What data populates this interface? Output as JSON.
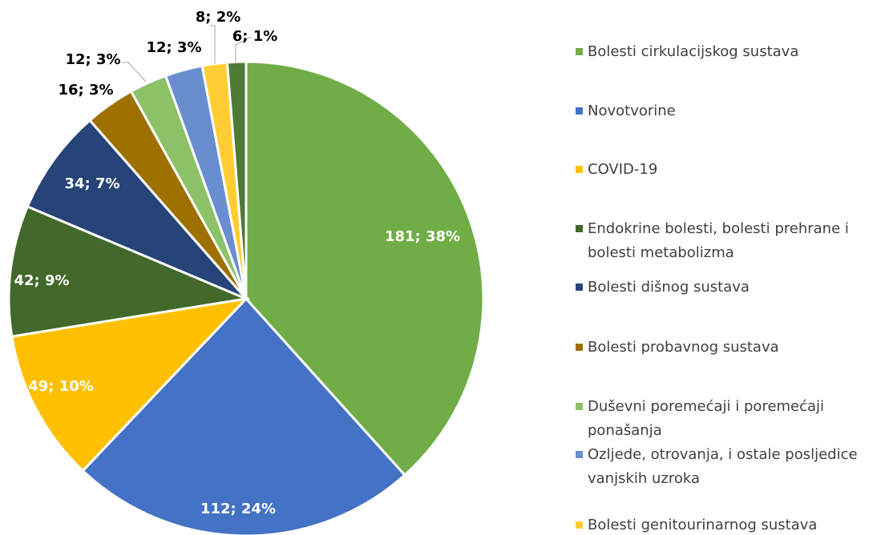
{
  "chart_data": {
    "type": "pie",
    "categories": [
      "Bolesti cirkulacijskog sustava",
      "Novotvorine",
      "COVID-19",
      "Endokrine bolesti, bolesti prehrane i bolesti metabolizma",
      "Bolesti dišnog sustava",
      "Bolesti probavnog sustava",
      "Duševni poremećaji i poremećaji ponašanja",
      "Ozljede, otrovanja, i ostale posljedice vanjskih uzroka",
      "Bolesti genitourinarnog sustava",
      null
    ],
    "values": [
      181,
      112,
      49,
      42,
      34,
      16,
      12,
      12,
      8,
      6
    ],
    "value_labels": [
      "181; 38%",
      "112; 24%",
      "49; 10%",
      "42; 9%",
      "34; 7%",
      "16; 3%",
      "12; 3%",
      "12; 3%",
      "8; 2%",
      "6; 1%"
    ],
    "colors": [
      "#70ad47",
      "#4472c4",
      "#ffc000",
      "#43682b",
      "#264478",
      "#9e7000",
      "#8cc168",
      "#698ed0",
      "#ffcd33",
      "#4e7a35"
    ]
  }
}
